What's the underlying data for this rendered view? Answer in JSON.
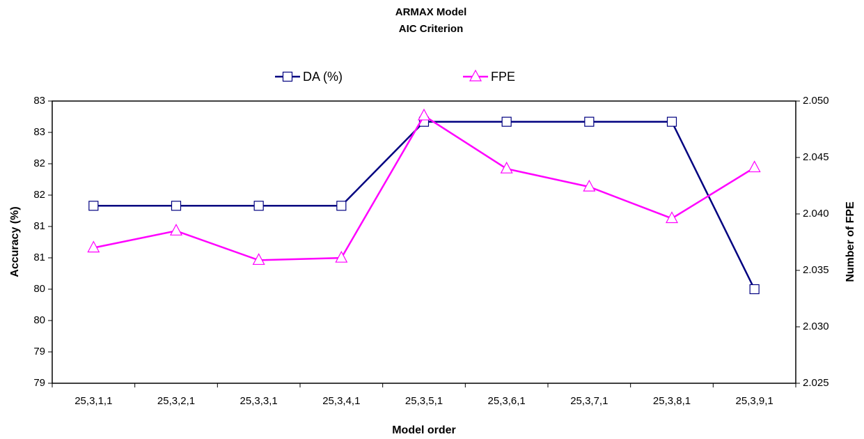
{
  "chart_data": {
    "type": "line",
    "title": "ARMAX Model",
    "subtitle": "AIC Criterion",
    "xlabel": "Model order",
    "ylabel": "Accuracy (%)",
    "y2label": "Number of FPE",
    "categories": [
      "25,3,1,1",
      "25,3,2,1",
      "25,3,3,1",
      "25,3,4,1",
      "25,3,5,1",
      "25,3,6,1",
      "25,3,7,1",
      "25,3,8,1",
      "25,3,9,1"
    ],
    "series": [
      {
        "name": "DA (%)",
        "color": "#000080",
        "marker": "square",
        "values": [
          81.33,
          81.33,
          81.33,
          81.33,
          82.67,
          82.67,
          82.67,
          82.67,
          80.0
        ]
      },
      {
        "name": "FPE",
        "color": "#ff00ff",
        "marker": "triangle",
        "axis": "y2",
        "values": [
          2.037,
          2.0385,
          2.0359,
          2.0361,
          2.0487,
          2.044,
          2.0424,
          2.0396,
          2.0441
        ]
      }
    ],
    "ylim": [
      78.5,
      83
    ],
    "yticks": [
      {
        "value": 78.5,
        "label": "79"
      },
      79,
      {
        "value": 79.5,
        "label": "80"
      },
      80,
      {
        "value": 80.5,
        "label": "81"
      },
      81,
      {
        "value": 81.5,
        "label": "82"
      },
      82,
      {
        "value": 82.5,
        "label": "83"
      },
      83
    ],
    "y2lim": [
      2.025,
      2.05
    ],
    "y2ticks": [
      2.025,
      {
        "value": 2.03,
        "label": "2.030"
      },
      2.035,
      {
        "value": 2.04,
        "label": "2.040"
      },
      2.045,
      {
        "value": 2.05,
        "label": "2.050"
      }
    ],
    "legend": "top",
    "grid": false
  }
}
